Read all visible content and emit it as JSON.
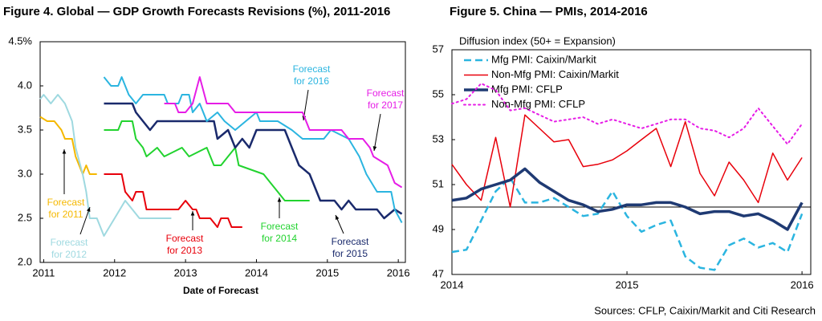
{
  "chart_data": [
    {
      "type": "line",
      "title": "Figure 4. Global — GDP Growth Forecasts Revisions (%), 2011-2016",
      "xlabel": "Date of Forecast",
      "xlim": [
        2010.95,
        2016.1
      ],
      "xticks": [
        2011,
        2012,
        2013,
        2014,
        2015,
        2016
      ],
      "ylim": [
        2.0,
        4.5
      ],
      "yticks": [
        {
          "value": 2.0,
          "label": "2.0"
        },
        {
          "value": 2.5,
          "label": "2.5"
        },
        {
          "value": 3.0,
          "label": "3.0"
        },
        {
          "value": 3.5,
          "label": "3.5"
        },
        {
          "value": 4.0,
          "label": "4.0"
        },
        {
          "value": 4.5,
          "label": "4.5%"
        }
      ],
      "series": [
        {
          "label": [
            "Forecast",
            "for 2011"
          ],
          "color": "#f5b800",
          "line_style": "solid",
          "width": 2,
          "x": [
            2010.95,
            2011.05,
            2011.15,
            2011.25,
            2011.3,
            2011.4,
            2011.45,
            2011.5,
            2011.55,
            2011.6,
            2011.65,
            2011.75
          ],
          "values": [
            3.65,
            3.6,
            3.6,
            3.5,
            3.4,
            3.4,
            3.2,
            3.1,
            3.0,
            3.1,
            3.0,
            3.0
          ]
        },
        {
          "label": [
            "Forecast",
            "for 2012"
          ],
          "color": "#9fd9e0",
          "line_style": "solid",
          "width": 2,
          "x": [
            2010.95,
            2011.0,
            2011.1,
            2011.2,
            2011.3,
            2011.4,
            2011.45,
            2011.55,
            2011.6,
            2011.65,
            2011.75,
            2011.85,
            2012.0,
            2012.15,
            2012.25,
            2012.35,
            2012.8
          ],
          "values": [
            3.85,
            3.9,
            3.8,
            3.9,
            3.8,
            3.6,
            3.3,
            3.0,
            2.8,
            2.5,
            2.5,
            2.3,
            2.5,
            2.7,
            2.6,
            2.5,
            2.5
          ]
        },
        {
          "label": [
            "Forecast",
            "for 2013"
          ],
          "color": "#e8000b",
          "line_style": "solid",
          "width": 2,
          "x": [
            2011.85,
            2012.1,
            2012.15,
            2012.25,
            2012.3,
            2012.4,
            2012.45,
            2012.9,
            2013.0,
            2013.1,
            2013.15,
            2013.2,
            2013.35,
            2013.45,
            2013.5,
            2013.6,
            2013.65,
            2013.8
          ],
          "values": [
            3.0,
            3.0,
            2.8,
            2.7,
            2.8,
            2.8,
            2.6,
            2.6,
            2.7,
            2.6,
            2.6,
            2.5,
            2.5,
            2.4,
            2.5,
            2.5,
            2.4,
            2.4
          ]
        },
        {
          "label": [
            "Forecast",
            "for 2014"
          ],
          "color": "#22d32f",
          "line_style": "solid",
          "width": 2,
          "x": [
            2011.85,
            2012.05,
            2012.1,
            2012.25,
            2012.3,
            2012.4,
            2012.45,
            2012.6,
            2012.7,
            2012.95,
            2013.05,
            2013.3,
            2013.4,
            2013.5,
            2013.6,
            2013.7,
            2013.75,
            2014.1,
            2014.2,
            2014.3,
            2014.4,
            2014.75
          ],
          "values": [
            3.5,
            3.5,
            3.6,
            3.6,
            3.4,
            3.3,
            3.2,
            3.3,
            3.2,
            3.3,
            3.2,
            3.3,
            3.1,
            3.1,
            3.2,
            3.3,
            3.1,
            3.0,
            2.9,
            2.8,
            2.7,
            2.7
          ]
        },
        {
          "label": [
            "Forecast",
            "for 2015"
          ],
          "color": "#1a2a6c",
          "line_style": "solid",
          "width": 2.5,
          "x": [
            2011.85,
            2012.25,
            2012.3,
            2012.4,
            2012.5,
            2012.6,
            2013.4,
            2013.45,
            2013.6,
            2013.7,
            2013.8,
            2013.9,
            2014.0,
            2014.4,
            2014.5,
            2014.6,
            2014.75,
            2014.9,
            2015.1,
            2015.2,
            2015.3,
            2015.4,
            2015.7,
            2015.8,
            2015.95,
            2016.05
          ],
          "values": [
            3.8,
            3.8,
            3.7,
            3.6,
            3.5,
            3.6,
            3.6,
            3.4,
            3.5,
            3.3,
            3.4,
            3.3,
            3.5,
            3.5,
            3.3,
            3.1,
            3.0,
            2.7,
            2.7,
            2.6,
            2.7,
            2.6,
            2.6,
            2.5,
            2.6,
            2.55
          ]
        },
        {
          "label": [
            "Forecast",
            "for 2016"
          ],
          "color": "#2bb5e0",
          "line_style": "solid",
          "width": 2,
          "x": [
            2011.85,
            2011.95,
            2012.05,
            2012.1,
            2012.2,
            2012.3,
            2012.4,
            2012.7,
            2012.75,
            2012.9,
            2012.95,
            2013.05,
            2013.1,
            2013.2,
            2013.3,
            2013.45,
            2013.55,
            2013.7,
            2013.85,
            2014.0,
            2014.05,
            2014.3,
            2014.5,
            2014.65,
            2014.95,
            2015.05,
            2015.3,
            2015.45,
            2015.55,
            2015.7,
            2015.9,
            2015.95,
            2016.05
          ],
          "values": [
            4.1,
            4.0,
            4.0,
            4.1,
            3.9,
            3.8,
            3.9,
            3.9,
            3.8,
            3.8,
            3.9,
            3.9,
            3.7,
            3.8,
            3.6,
            3.7,
            3.6,
            3.5,
            3.6,
            3.7,
            3.6,
            3.6,
            3.5,
            3.4,
            3.4,
            3.5,
            3.4,
            3.2,
            3.0,
            2.8,
            2.8,
            2.6,
            2.45
          ]
        },
        {
          "label": [
            "Forecast",
            "for 2017"
          ],
          "color": "#e61de6",
          "line_style": "solid",
          "width": 2,
          "x": [
            2012.7,
            2012.85,
            2012.9,
            2013.0,
            2013.1,
            2013.2,
            2013.3,
            2013.6,
            2013.7,
            2014.65,
            2014.75,
            2015.2,
            2015.3,
            2015.5,
            2015.6,
            2015.65,
            2015.85,
            2015.95,
            2016.05
          ],
          "values": [
            3.8,
            3.8,
            3.7,
            3.7,
            3.8,
            4.1,
            3.8,
            3.8,
            3.7,
            3.7,
            3.5,
            3.5,
            3.4,
            3.4,
            3.3,
            3.2,
            3.1,
            2.9,
            2.85
          ]
        }
      ]
    },
    {
      "type": "line",
      "title": "Figure 5. China — PMIs, 2014-2016",
      "subtitle": "Diffusion index (50+ = Expansion)",
      "xlim": [
        2014,
        2016.05
      ],
      "xticks": [
        2014,
        2015,
        2016
      ],
      "ylim": [
        47,
        57
      ],
      "yticks": [
        47,
        49,
        51,
        53,
        55,
        57
      ],
      "reference_line": 50,
      "legend": "upper left",
      "series": [
        {
          "name": "Mfg PMI: Caixin/Markit",
          "color": "#2bb5e0",
          "line_style": "dashed",
          "width": 2.5,
          "x": [
            2014.0,
            2014.083,
            2014.167,
            2014.25,
            2014.333,
            2014.417,
            2014.5,
            2014.583,
            2014.667,
            2014.75,
            2014.833,
            2014.917,
            2015.0,
            2015.083,
            2015.167,
            2015.25,
            2015.333,
            2015.417,
            2015.5,
            2015.583,
            2015.667,
            2015.75,
            2015.833,
            2015.917,
            2016.0
          ],
          "values": [
            48.0,
            48.1,
            49.4,
            50.7,
            51.3,
            50.2,
            50.2,
            50.4,
            50.0,
            49.6,
            49.7,
            50.7,
            49.6,
            48.9,
            49.2,
            49.4,
            47.8,
            47.3,
            47.2,
            48.3,
            48.6,
            48.2,
            48.4,
            48.0,
            49.7
          ]
        },
        {
          "name": "Non-Mfg PMI: Caixin/Markit",
          "color": "#e8000b",
          "line_style": "solid",
          "width": 1.5,
          "x": [
            2014.0,
            2014.083,
            2014.167,
            2014.25,
            2014.333,
            2014.417,
            2014.5,
            2014.583,
            2014.667,
            2014.75,
            2014.833,
            2014.917,
            2015.0,
            2015.083,
            2015.167,
            2015.25,
            2015.333,
            2015.417,
            2015.5,
            2015.583,
            2015.667,
            2015.75,
            2015.833,
            2015.917,
            2016.0
          ],
          "values": [
            51.9,
            51.0,
            50.3,
            53.1,
            50.0,
            54.1,
            53.5,
            52.9,
            53.0,
            51.8,
            51.9,
            52.1,
            52.5,
            53.0,
            53.5,
            51.8,
            53.8,
            51.5,
            50.5,
            52.0,
            51.2,
            50.2,
            52.4,
            51.2,
            52.2
          ]
        },
        {
          "name": "Mfg PMI: CFLP",
          "color": "#1f3a73",
          "line_style": "solid",
          "width": 3.5,
          "x": [
            2014.0,
            2014.083,
            2014.167,
            2014.25,
            2014.333,
            2014.417,
            2014.5,
            2014.583,
            2014.667,
            2014.75,
            2014.833,
            2014.917,
            2015.0,
            2015.083,
            2015.167,
            2015.25,
            2015.333,
            2015.417,
            2015.5,
            2015.583,
            2015.667,
            2015.75,
            2015.833,
            2015.917,
            2016.0
          ],
          "values": [
            50.3,
            50.4,
            50.8,
            51.0,
            51.2,
            51.7,
            51.1,
            50.7,
            50.3,
            50.1,
            49.8,
            49.9,
            50.1,
            50.1,
            50.2,
            50.2,
            50.0,
            49.7,
            49.8,
            49.8,
            49.6,
            49.7,
            49.4,
            49.0,
            50.2
          ]
        },
        {
          "name": "Non-Mfg PMI: CFLP",
          "color": "#e61de6",
          "line_style": "dotted",
          "width": 2,
          "x": [
            2014.0,
            2014.083,
            2014.167,
            2014.25,
            2014.333,
            2014.417,
            2014.5,
            2014.583,
            2014.667,
            2014.75,
            2014.833,
            2014.917,
            2015.0,
            2015.083,
            2015.167,
            2015.25,
            2015.333,
            2015.417,
            2015.5,
            2015.583,
            2015.667,
            2015.75,
            2015.833,
            2015.917,
            2016.0
          ],
          "values": [
            54.6,
            54.8,
            55.5,
            55.2,
            54.3,
            54.4,
            54.1,
            53.8,
            53.9,
            54.0,
            53.7,
            53.9,
            53.7,
            53.5,
            53.7,
            53.9,
            53.9,
            53.5,
            53.4,
            53.1,
            53.5,
            54.4,
            53.6,
            52.8,
            53.7
          ]
        }
      ]
    }
  ],
  "source": "Sources: CFLP, Caixin/Markit and Citi Research"
}
